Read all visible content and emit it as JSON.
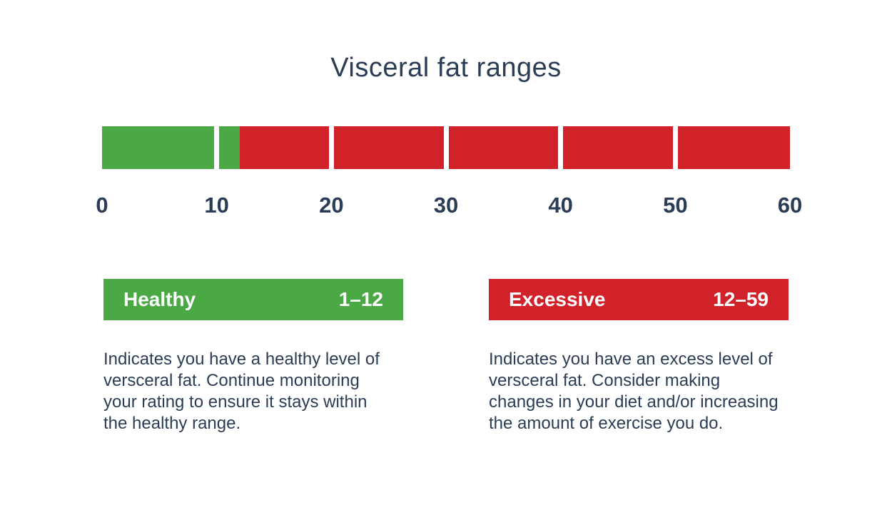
{
  "title": "Visceral fat ranges",
  "colors": {
    "healthy_green": "#4aa945",
    "excessive_red": "#d1222a",
    "text_navy": "#2b3d55",
    "background": "#ffffff"
  },
  "chart_data": {
    "type": "range-bar",
    "title": "Visceral fat ranges",
    "axis_min": 0,
    "axis_max": 60,
    "axis_ticks": [
      0,
      10,
      20,
      30,
      40,
      50,
      60
    ],
    "segments_per_bar": 6,
    "grid": false,
    "ranges": [
      {
        "name": "healthy",
        "label": "Healthy",
        "range_label": "1–12",
        "start": 0,
        "end": 12,
        "color": "#4aa945",
        "description": "Indicates you have a healthy level of versceral fat. Continue monitoring your rating to ensure it stays within the healthy range."
      },
      {
        "name": "excessive",
        "label": "Excessive",
        "range_label": "12–59",
        "start": 12,
        "end": 60,
        "color": "#d1222a",
        "description": "Indicates you have an excess level of versceral fat. Consider making changes in your diet and/or increasing the amount of exercise you do."
      }
    ]
  }
}
